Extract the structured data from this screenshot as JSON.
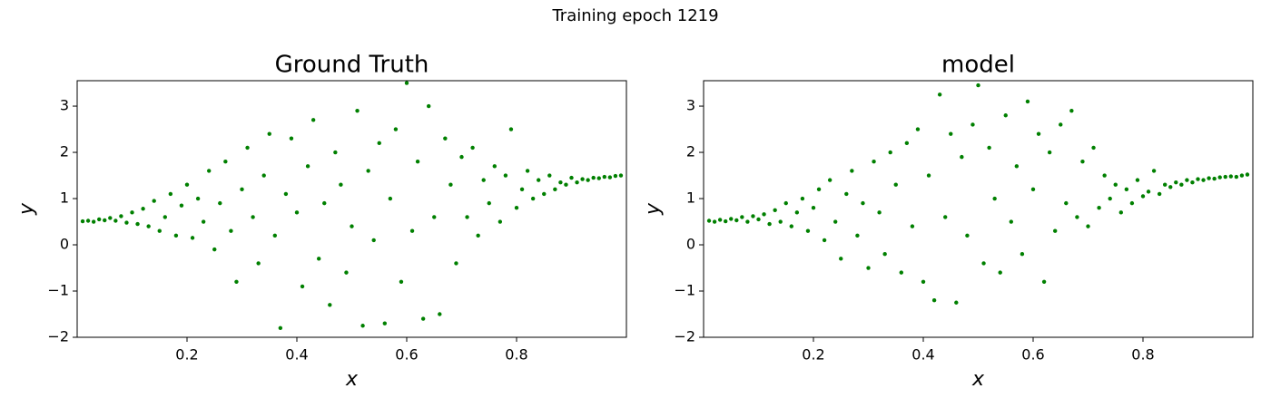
{
  "title": "Training epoch 1219",
  "chart_data": [
    {
      "type": "scatter",
      "title": "Ground Truth",
      "x_label": "x",
      "y_label": "y",
      "color": "#008000",
      "xlim": [
        0,
        1
      ],
      "ylim": [
        -2,
        3.55
      ],
      "xticks": [
        0.2,
        0.4,
        0.6,
        0.8
      ],
      "yticks": [
        {
          "value": -2,
          "label": "−2"
        },
        {
          "value": -1,
          "label": "−1"
        },
        0,
        1,
        2,
        3
      ],
      "x": [
        0.01,
        0.02,
        0.03,
        0.04,
        0.05,
        0.06,
        0.07,
        0.08,
        0.09,
        0.1,
        0.11,
        0.12,
        0.13,
        0.14,
        0.15,
        0.16,
        0.17,
        0.18,
        0.19,
        0.2,
        0.21,
        0.22,
        0.23,
        0.24,
        0.25,
        0.26,
        0.27,
        0.28,
        0.29,
        0.3,
        0.31,
        0.32,
        0.33,
        0.34,
        0.35,
        0.36,
        0.37,
        0.38,
        0.39,
        0.4,
        0.41,
        0.42,
        0.43,
        0.44,
        0.45,
        0.46,
        0.47,
        0.48,
        0.49,
        0.5,
        0.51,
        0.52,
        0.53,
        0.54,
        0.55,
        0.56,
        0.57,
        0.58,
        0.59,
        0.6,
        0.61,
        0.62,
        0.63,
        0.64,
        0.65,
        0.66,
        0.67,
        0.68,
        0.69,
        0.7,
        0.71,
        0.72,
        0.73,
        0.74,
        0.75,
        0.76,
        0.77,
        0.78,
        0.79,
        0.8,
        0.81,
        0.82,
        0.83,
        0.84,
        0.85,
        0.86,
        0.87,
        0.88,
        0.89,
        0.9,
        0.91,
        0.92,
        0.93,
        0.94,
        0.95,
        0.96,
        0.97,
        0.98,
        0.99
      ],
      "values": [
        0.51,
        0.52,
        0.5,
        0.55,
        0.53,
        0.58,
        0.52,
        0.62,
        0.48,
        0.7,
        0.45,
        0.78,
        0.4,
        0.95,
        0.3,
        0.6,
        1.1,
        0.2,
        0.85,
        1.3,
        0.15,
        1.0,
        0.5,
        1.6,
        -0.1,
        0.9,
        1.8,
        0.3,
        -0.8,
        1.2,
        2.1,
        0.6,
        -0.4,
        1.5,
        2.4,
        0.2,
        -1.8,
        1.1,
        2.3,
        0.7,
        -0.9,
        1.7,
        2.7,
        -0.3,
        0.9,
        -1.3,
        2.0,
        1.3,
        -0.6,
        0.4,
        2.9,
        -1.75,
        1.6,
        0.1,
        2.2,
        -1.7,
        1.0,
        2.5,
        -0.8,
        3.5,
        0.3,
        1.8,
        -1.6,
        3.0,
        0.6,
        -1.5,
        2.3,
        1.3,
        -0.4,
        1.9,
        0.6,
        2.1,
        0.2,
        1.4,
        0.9,
        1.7,
        0.5,
        1.5,
        2.5,
        0.8,
        1.2,
        1.6,
        1.0,
        1.4,
        1.1,
        1.5,
        1.2,
        1.35,
        1.3,
        1.45,
        1.35,
        1.42,
        1.4,
        1.45,
        1.44,
        1.47,
        1.46,
        1.49,
        1.5
      ]
    },
    {
      "type": "scatter",
      "title": "model",
      "x_label": "x",
      "y_label": "y",
      "color": "#008000",
      "xlim": [
        0,
        1
      ],
      "ylim": [
        -2,
        3.55
      ],
      "xticks": [
        0.2,
        0.4,
        0.6,
        0.8
      ],
      "yticks": [
        {
          "value": -2,
          "label": "−2"
        },
        {
          "value": -1,
          "label": "−1"
        },
        0,
        1,
        2,
        3
      ],
      "x": [
        0.01,
        0.02,
        0.03,
        0.04,
        0.05,
        0.06,
        0.07,
        0.08,
        0.09,
        0.1,
        0.11,
        0.12,
        0.13,
        0.14,
        0.15,
        0.16,
        0.17,
        0.18,
        0.19,
        0.2,
        0.21,
        0.22,
        0.23,
        0.24,
        0.25,
        0.26,
        0.27,
        0.28,
        0.29,
        0.3,
        0.31,
        0.32,
        0.33,
        0.34,
        0.35,
        0.36,
        0.37,
        0.38,
        0.39,
        0.4,
        0.41,
        0.42,
        0.43,
        0.44,
        0.45,
        0.46,
        0.47,
        0.48,
        0.49,
        0.5,
        0.51,
        0.52,
        0.53,
        0.54,
        0.55,
        0.56,
        0.57,
        0.58,
        0.59,
        0.6,
        0.61,
        0.62,
        0.63,
        0.64,
        0.65,
        0.66,
        0.67,
        0.68,
        0.69,
        0.7,
        0.71,
        0.72,
        0.73,
        0.74,
        0.75,
        0.76,
        0.77,
        0.78,
        0.79,
        0.8,
        0.81,
        0.82,
        0.83,
        0.84,
        0.85,
        0.86,
        0.87,
        0.88,
        0.89,
        0.9,
        0.91,
        0.92,
        0.93,
        0.94,
        0.95,
        0.96,
        0.97,
        0.98,
        0.99
      ],
      "values": [
        0.52,
        0.5,
        0.54,
        0.51,
        0.56,
        0.53,
        0.6,
        0.5,
        0.62,
        0.55,
        0.66,
        0.45,
        0.75,
        0.5,
        0.9,
        0.4,
        0.7,
        1.0,
        0.3,
        0.8,
        1.2,
        0.1,
        1.4,
        0.5,
        -0.3,
        1.1,
        1.6,
        0.2,
        0.9,
        -0.5,
        1.8,
        0.7,
        -0.2,
        2.0,
        1.3,
        -0.6,
        2.2,
        0.4,
        2.5,
        -0.8,
        1.5,
        -1.2,
        3.25,
        0.6,
        2.4,
        -1.25,
        1.9,
        0.2,
        2.6,
        3.45,
        -0.4,
        2.1,
        1.0,
        -0.6,
        2.8,
        0.5,
        1.7,
        -0.2,
        3.1,
        1.2,
        2.4,
        -0.8,
        2.0,
        0.3,
        2.6,
        0.9,
        2.9,
        0.6,
        1.8,
        0.4,
        2.1,
        0.8,
        1.5,
        1.0,
        1.3,
        0.7,
        1.2,
        0.9,
        1.4,
        1.05,
        1.15,
        1.6,
        1.1,
        1.3,
        1.25,
        1.35,
        1.3,
        1.4,
        1.35,
        1.42,
        1.4,
        1.44,
        1.43,
        1.46,
        1.47,
        1.48,
        1.47,
        1.5,
        1.52
      ]
    }
  ]
}
